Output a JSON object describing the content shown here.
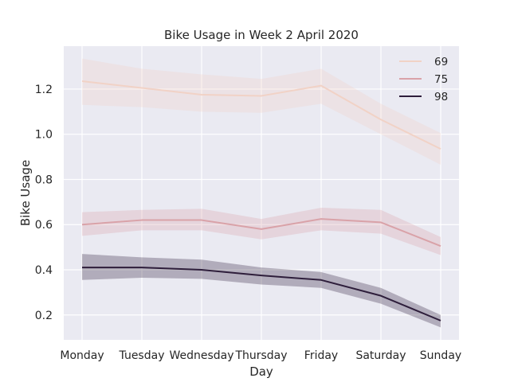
{
  "chart_data": {
    "type": "line",
    "title": "Bike Usage in Week 2 April 2020",
    "xlabel": "Day",
    "ylabel": "Bike Usage",
    "categories": [
      "Monday",
      "Tuesday",
      "Wednesday",
      "Thursday",
      "Friday",
      "Saturday",
      "Sunday"
    ],
    "yticks": [
      "0.2",
      "0.4",
      "0.6",
      "0.8",
      "1.0",
      "1.2"
    ],
    "ylim": [
      0.09,
      1.39
    ],
    "grid": true,
    "legend_position": "top-right",
    "series": [
      {
        "name": "69",
        "color": "#f1d2c6",
        "values": [
          1.235,
          1.205,
          1.175,
          1.17,
          1.215,
          1.065,
          0.935
        ],
        "ci_low": [
          1.13,
          1.12,
          1.1,
          1.095,
          1.135,
          1.0,
          0.865
        ],
        "ci_high": [
          1.335,
          1.29,
          1.265,
          1.245,
          1.29,
          1.135,
          1.005
        ]
      },
      {
        "name": "75",
        "color": "#d9a2a8",
        "values": [
          0.6,
          0.62,
          0.62,
          0.58,
          0.625,
          0.61,
          0.505
        ],
        "ci_low": [
          0.55,
          0.575,
          0.575,
          0.535,
          0.575,
          0.56,
          0.465
        ],
        "ci_high": [
          0.655,
          0.665,
          0.67,
          0.625,
          0.675,
          0.665,
          0.545
        ]
      },
      {
        "name": "98",
        "color": "#2e1e3b",
        "values": [
          0.41,
          0.41,
          0.4,
          0.375,
          0.355,
          0.285,
          0.175
        ],
        "ci_low": [
          0.355,
          0.365,
          0.36,
          0.335,
          0.32,
          0.25,
          0.145
        ],
        "ci_high": [
          0.47,
          0.455,
          0.445,
          0.41,
          0.39,
          0.32,
          0.2
        ]
      }
    ]
  }
}
